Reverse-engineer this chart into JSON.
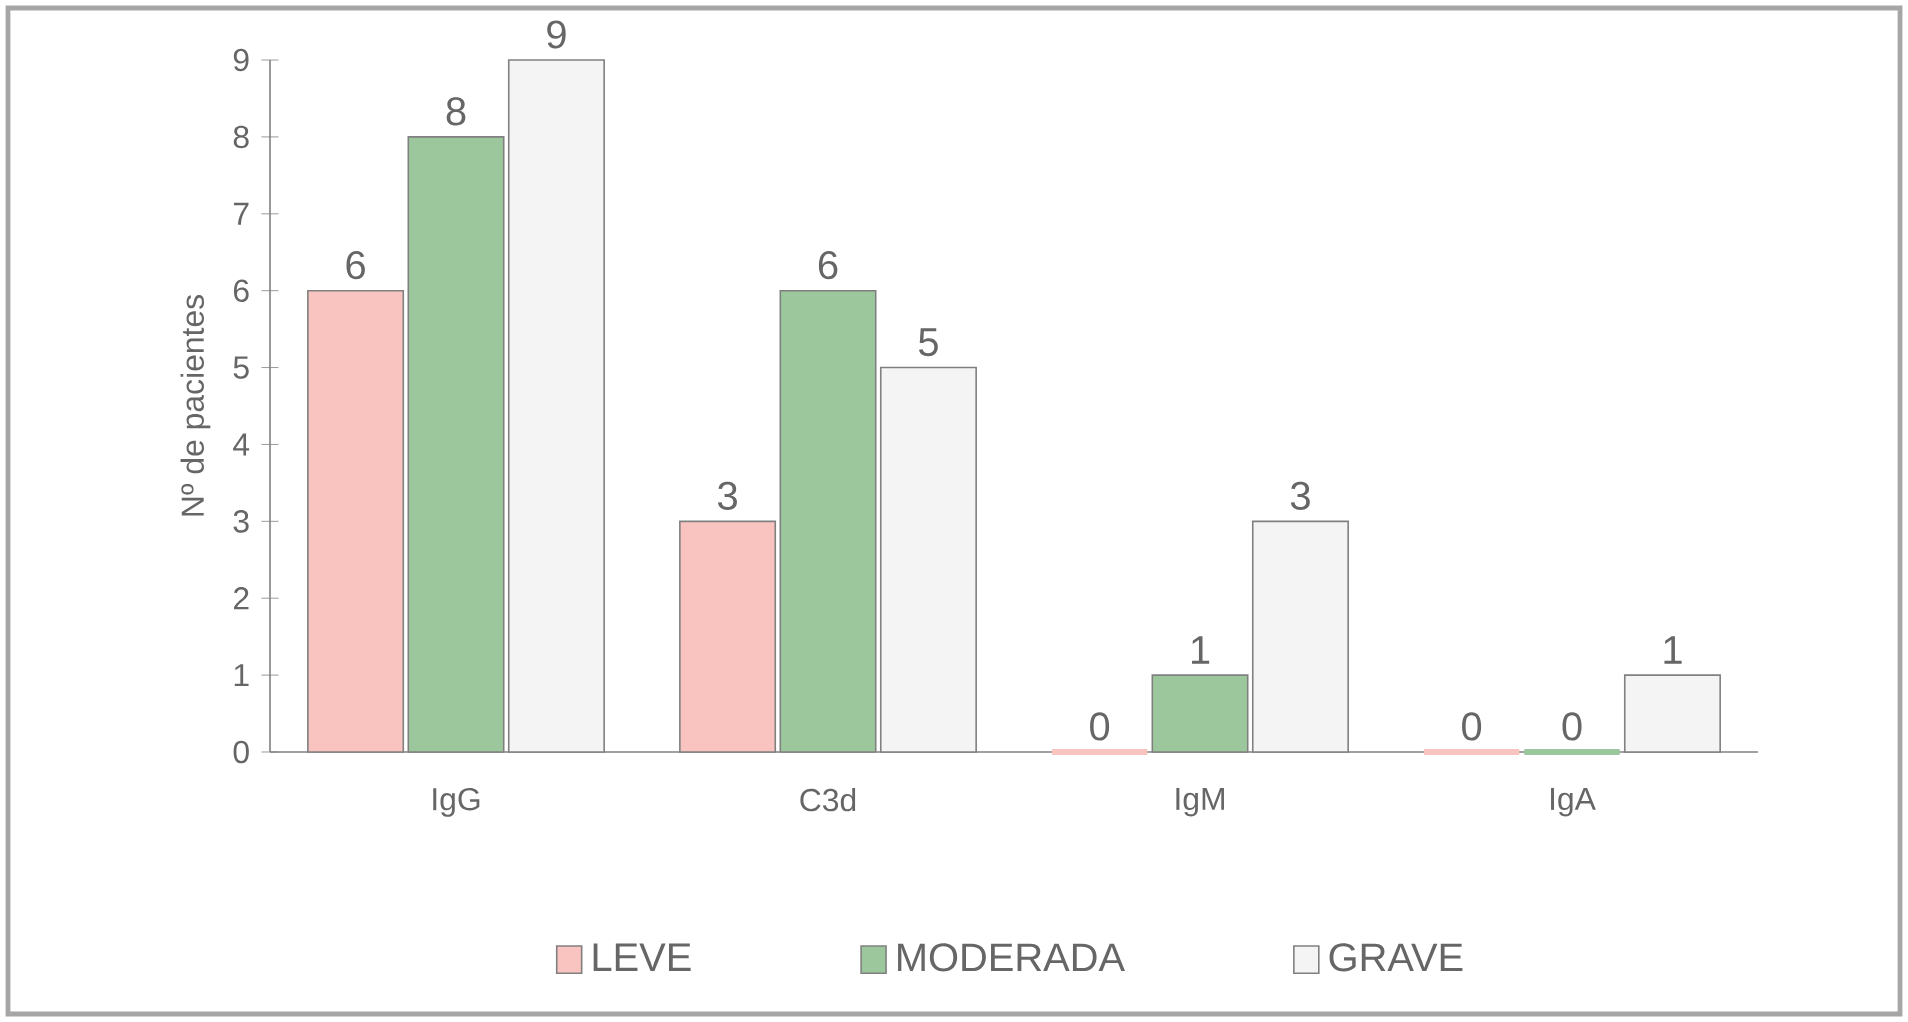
{
  "chart_data": {
    "type": "bar",
    "ylabel": "Nº de pacientes",
    "categories": [
      "IgG",
      "C3d",
      "IgM",
      "IgA"
    ],
    "series": [
      {
        "name": "LEVE",
        "color": "#f9c4c0",
        "values": [
          6,
          3,
          0,
          0
        ]
      },
      {
        "name": "MODERADA",
        "color": "#9cc79c",
        "values": [
          8,
          6,
          1,
          0
        ]
      },
      {
        "name": "GRAVE",
        "color": "#f4f4f4",
        "values": [
          9,
          5,
          3,
          1
        ]
      }
    ],
    "ylim": [
      0,
      9
    ],
    "yticks": [
      0,
      1,
      2,
      3,
      4,
      5,
      6,
      7,
      8,
      9
    ],
    "data_labels": true,
    "legend": "bottom"
  }
}
